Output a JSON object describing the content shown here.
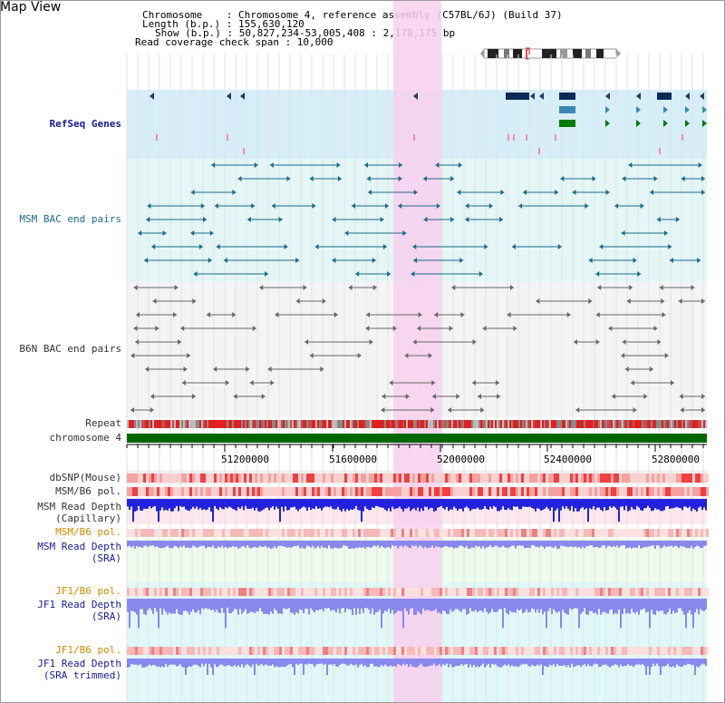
{
  "view": {
    "title": "Map View"
  },
  "info": {
    "line1": "Chromosome    : Chromosome 4, reference assembly (C57BL/6J) (Build 37)",
    "line2": "Length (b.p.) : 155,630,120",
    "line3": "Show (b.p.) : 50,827,234-53,005,408 : 2,178,175 bp",
    "line4": "Read coverage check span : 10,000"
  },
  "tracks": {
    "refseq": "RefSeq Genes",
    "msm_bac": "MSM BAC end pairs",
    "b6n_bac": "B6N BAC end pairs",
    "repeat": "Repeat",
    "chromosome": "chromosome 4",
    "dbsnp": "dbSNP(Mouse)",
    "msm_b6_pol": "MSM/B6 pol.",
    "msm_depth_cap_1": "MSM Read Depth",
    "msm_depth_cap_2": "(Capillary)",
    "msm_b6_pol2": "MSM/B6 pol.",
    "msm_depth_sra_1": "MSM Read Depth",
    "msm_depth_sra_2": "(SRA)",
    "jf1_b6_pol": "JF1/B6 pol.",
    "jf1_depth_sra_1": "JF1 Read Depth",
    "jf1_depth_sra_2": "(SRA)",
    "jf1_b6_pol2": "JF1/B6 pol.",
    "jf1_depth_trim_1": "JF1 Read Depth",
    "jf1_depth_trim_2": "(SRA trimmed)"
  },
  "axis": {
    "ticks": [
      "51200000",
      "51600000",
      "52000000",
      "52400000",
      "52800000"
    ]
  },
  "colors": {
    "refseq_bg": "#d6eef8",
    "msm_bg": "#e4f6f6",
    "b6n_bg": "#f4f4f6",
    "highlight": "#f8d0ee",
    "chromosome": "#006600",
    "depth_blue": "#2222dd",
    "depth_lav": "#8888ee"
  }
}
